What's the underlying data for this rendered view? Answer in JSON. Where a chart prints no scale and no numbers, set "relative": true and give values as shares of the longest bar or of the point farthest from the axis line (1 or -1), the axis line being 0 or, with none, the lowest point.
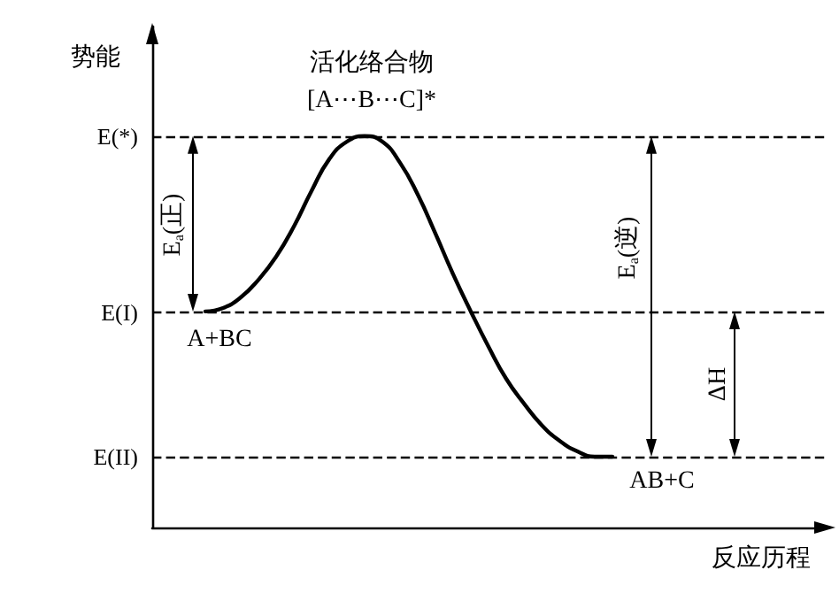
{
  "chart_data": {
    "type": "line",
    "relative": true,
    "xlabel": "反应历程",
    "ylabel": "势能",
    "categories": [
      null,
      null,
      null,
      null,
      null,
      null,
      null,
      null,
      null,
      null,
      null,
      null,
      null,
      null,
      null,
      null,
      null,
      null,
      null,
      null,
      null,
      null,
      null,
      null,
      null,
      null,
      null,
      null,
      null,
      null,
      null,
      null,
      null,
      null,
      null,
      null,
      null,
      null,
      null
    ],
    "series": [
      {
        "color": "#000000",
        "values": [
          null,
          null,
          null,
          0.552,
          0.561,
          0.588,
          0.633,
          0.692,
          0.769,
          0.86,
          0.941,
          0.986,
          1,
          0.986,
          0.932,
          0.851,
          0.751,
          0.647,
          0.552,
          0.462,
          0.38,
          0.317,
          0.262,
          0.222,
          0.195,
          0.181,
          0.181,
          null,
          null,
          null,
          null,
          null,
          null,
          null,
          null,
          null,
          null,
          null,
          null
        ]
      }
    ],
    "ref_lines": [
      {
        "axis": "y",
        "value": 1,
        "label": "E(*)",
        "line_style": "dashed",
        "color": "#000000"
      },
      {
        "axis": "y",
        "value": 0.552,
        "label": "E(I)",
        "line_style": "dashed",
        "color": "#000000"
      },
      {
        "axis": "y",
        "value": 0.181,
        "label": "E(II)",
        "line_style": "dashed",
        "color": "#000000"
      }
    ],
    "annotations": [
      "活化络合物",
      "[A⋯B⋯C]*",
      "A+BC",
      "AB+C",
      "E$_{a}$(正)",
      "E$_{a}$(逆)",
      "ΔH"
    ],
    "marker": "none",
    "line_style": "solid"
  }
}
